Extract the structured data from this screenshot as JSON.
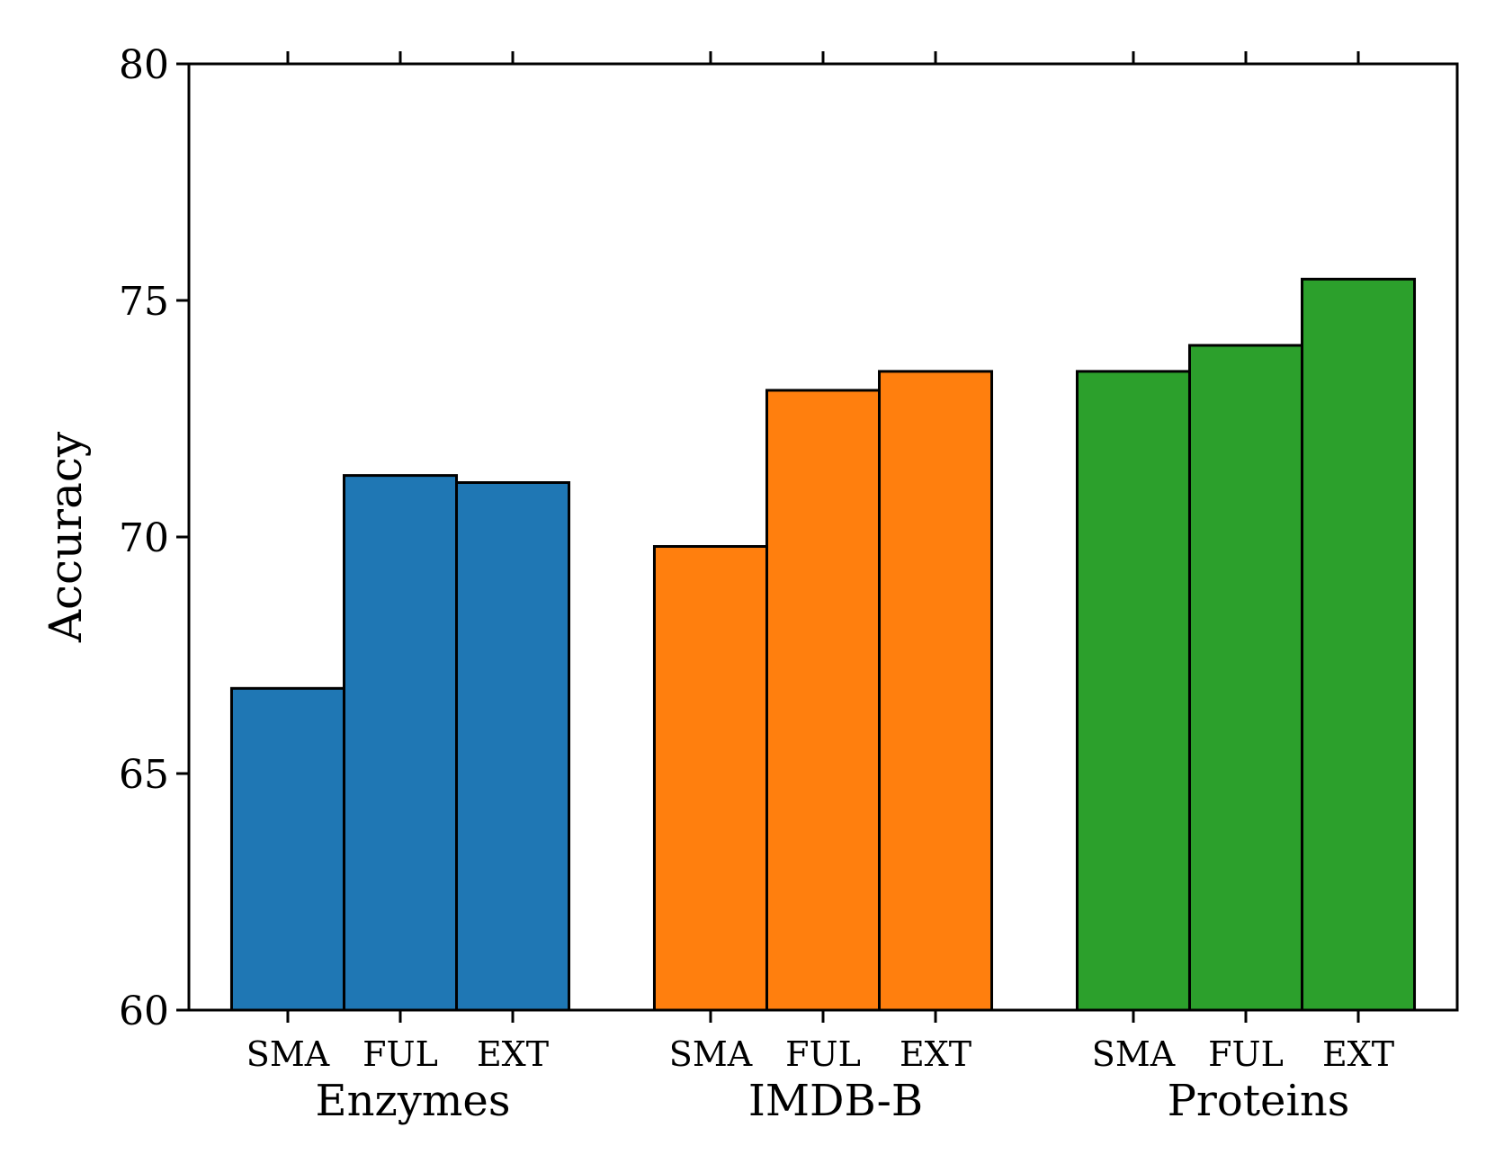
{
  "chart_data": {
    "type": "bar",
    "xlabel": "",
    "ylabel": "Accuracy",
    "ylim": [
      60,
      80
    ],
    "yticks": [
      60,
      65,
      70,
      75,
      80
    ],
    "grid": false,
    "legend": "none",
    "groups": [
      {
        "name": "Enzymes",
        "color": "#1f77b4",
        "categories": [
          "SMA",
          "FUL",
          "EXT"
        ],
        "values": [
          66.8,
          71.3,
          71.15
        ]
      },
      {
        "name": "IMDB-B",
        "color": "#ff7f0e",
        "categories": [
          "SMA",
          "FUL",
          "EXT"
        ],
        "values": [
          69.8,
          73.1,
          73.5
        ]
      },
      {
        "name": "Proteins",
        "color": "#2ca02c",
        "categories": [
          "SMA",
          "FUL",
          "EXT"
        ],
        "values": [
          73.5,
          74.05,
          75.45
        ]
      }
    ]
  }
}
